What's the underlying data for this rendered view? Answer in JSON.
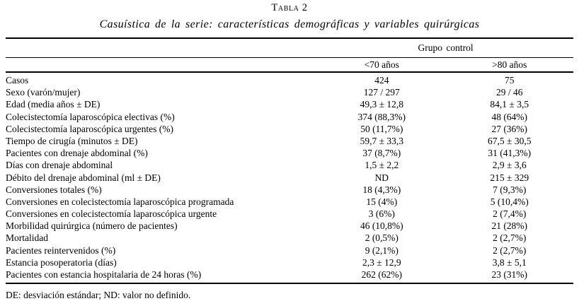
{
  "page": {
    "title": "Tabla 2",
    "subtitle": "Casuística de la serie: características demográficas y variables quirúrgicas",
    "footnote": "DE: desviación estándar; ND: valor no definido."
  },
  "table": {
    "group_header": "Grupo control",
    "columns": [
      "<70 años",
      ">80 años"
    ],
    "rows": [
      {
        "label": "Casos",
        "values": [
          "424",
          "75"
        ]
      },
      {
        "label": "Sexo (varón/mujer)",
        "values": [
          "127 / 297",
          "29 / 46"
        ]
      },
      {
        "label": "Edad (media años ± DE)",
        "values": [
          "49,3 ± 12,8",
          "84,1 ± 3,5"
        ]
      },
      {
        "label": "Colecistectomía laparoscópica electivas (%)",
        "values": [
          "374 (88,3%)",
          "48 (64%)"
        ]
      },
      {
        "label": "Colecistectomía laparoscópica urgentes (%)",
        "values": [
          "50 (11,7%)",
          "27 (36%)"
        ]
      },
      {
        "label": "Tiempo de cirugía (minutos ± DE)",
        "values": [
          "59,7 ± 33,3",
          "67,5 ± 30,5"
        ]
      },
      {
        "label": "Pacientes con drenaje abdominal (%)",
        "values": [
          "37 (8,7%)",
          "31 (41,3%)"
        ]
      },
      {
        "label": "Días con drenaje abdominal",
        "values": [
          "1,5 ± 2,2",
          "2,9 ± 3,6"
        ]
      },
      {
        "label": "Débito del drenaje abdominal (ml ± DE)",
        "values": [
          "ND",
          "215 ± 329"
        ]
      },
      {
        "label": "Conversiones totales (%)",
        "values": [
          "18 (4,3%)",
          "7 (9,3%)"
        ]
      },
      {
        "label": "Conversiones en colecistectomía laparoscópica programada",
        "values": [
          "15 (4%)",
          "5 (10,4%)"
        ]
      },
      {
        "label": "Conversiones en colecistectomía laparoscópica urgente",
        "values": [
          "3 (6%)",
          "2 (7,4%)"
        ]
      },
      {
        "label": "Morbilidad quirúrgica (número de pacientes)",
        "values": [
          "46 (10,8%)",
          "21 (28%)"
        ]
      },
      {
        "label": "Mortalidad",
        "values": [
          "2 (0,5%)",
          "2 (2,7%)"
        ]
      },
      {
        "label": "Pacientes reintervenidos (%)",
        "values": [
          "9 (2,1%)",
          "2 (2,7%)"
        ]
      },
      {
        "label": "Estancia posoperatoria (días)",
        "values": [
          "2,3 ± 12,9",
          "3,8 ± 5,1"
        ]
      },
      {
        "label": "Pacientes con estancia hospitalaria de 24 horas (%)",
        "values": [
          "262 (62%)",
          "23 (31%)"
        ]
      }
    ]
  }
}
